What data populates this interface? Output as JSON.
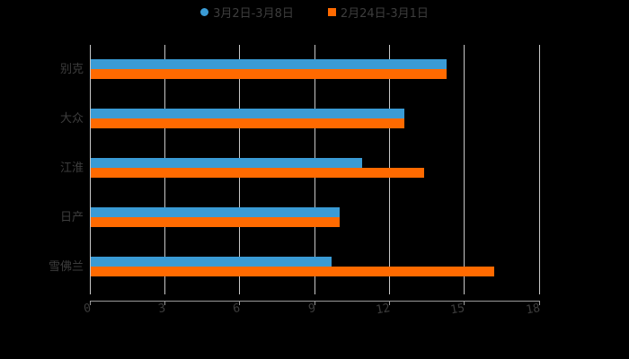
{
  "chart_data": {
    "type": "bar",
    "orientation": "horizontal",
    "title": "",
    "xlabel": "",
    "ylabel": "",
    "categories": [
      "别克",
      "大众",
      "江淮",
      "日产",
      "雪佛兰"
    ],
    "series": [
      {
        "name": "3月2日-3月8日",
        "color": "#3a9bd5",
        "marker": "circle",
        "values": [
          14.3,
          12.6,
          10.9,
          10.0,
          9.7
        ]
      },
      {
        "name": "2月24日-3月1日",
        "color": "#ff6a00",
        "marker": "square",
        "values": [
          14.3,
          12.6,
          13.4,
          10.0,
          16.2
        ]
      }
    ],
    "xlim": [
      0,
      18
    ],
    "xticks": [
      0,
      3,
      6,
      9,
      12,
      15,
      18
    ],
    "xtick_labels": [
      "0",
      "3",
      "6",
      "9",
      "12",
      "15",
      "18"
    ],
    "grid": true,
    "legend_position": "top"
  },
  "legend": {
    "items": [
      {
        "label": "3月2日-3月8日",
        "color": "#3a9bd5"
      },
      {
        "label": "2月24日-3月1日",
        "color": "#ff6a00"
      }
    ]
  },
  "axis": {
    "categories": [
      "别克",
      "大众",
      "江淮",
      "日产",
      "雪佛兰"
    ],
    "ticks": [
      "0",
      "3",
      "6",
      "9",
      "12",
      "15",
      "18"
    ]
  }
}
